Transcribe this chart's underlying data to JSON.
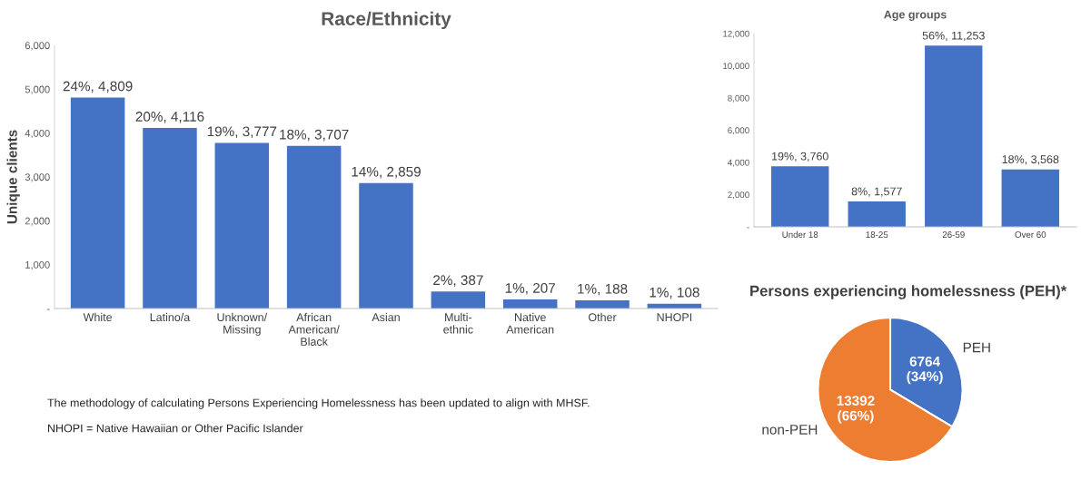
{
  "chart_data": [
    {
      "type": "bar",
      "title": "Race/Ethnicity",
      "ylabel": "Unique clients",
      "categories": [
        "White",
        "Latino/a",
        "Unknown/\nMissing",
        "African\nAmerican/\nBlack",
        "Asian",
        "Multi-\nethnic",
        "Native\nAmerican",
        "Other",
        "NHOPI"
      ],
      "values": [
        4809,
        4116,
        3777,
        3707,
        2859,
        387,
        207,
        188,
        108
      ],
      "value_labels": [
        "24%, 4,809",
        "20%, 4,116",
        "19%, 3,777",
        "18%, 3,707",
        "14%, 2,859",
        "2%, 387",
        "1%, 207",
        "1%, 188",
        "1%, 108"
      ],
      "color": "#4472c4",
      "ylim": [
        0,
        6000
      ],
      "yticks": [
        {
          "value": 0,
          "label": "-"
        },
        {
          "value": 1000,
          "label": "1,000"
        },
        {
          "value": 2000,
          "label": "2,000"
        },
        {
          "value": 3000,
          "label": "3,000"
        },
        {
          "value": 4000,
          "label": "4,000"
        },
        {
          "value": 5000,
          "label": "5,000"
        },
        {
          "value": 6000,
          "label": "6,000"
        }
      ],
      "grid": false,
      "legend": false,
      "annotations": [
        "The methodology of calculating Persons Experiencing Homelessness has been updated to align with MHSF.",
        "NHOPI = Native Hawaiian or Other Pacific Islander"
      ]
    },
    {
      "type": "bar",
      "title": "Age groups",
      "categories": [
        "Under 18",
        "18-25",
        "26-59",
        "Over 60"
      ],
      "values": [
        3760,
        1577,
        11253,
        3568
      ],
      "value_labels": [
        "19%, 3,760",
        "8%, 1,577",
        "56%, 11,253",
        "18%, 3,568"
      ],
      "color": "#4472c4",
      "ylim": [
        0,
        12000
      ],
      "yticks": [
        {
          "value": 0,
          "label": "-"
        },
        {
          "value": 2000,
          "label": "2,000"
        },
        {
          "value": 4000,
          "label": "4,000"
        },
        {
          "value": 6000,
          "label": "6,000"
        },
        {
          "value": 8000,
          "label": "8,000"
        },
        {
          "value": 10000,
          "label": "10,000"
        },
        {
          "value": 12000,
          "label": "12,000"
        }
      ],
      "grid": false,
      "legend": false
    },
    {
      "type": "pie",
      "title": "Persons experiencing homelessness (PEH)*",
      "categories": [
        "PEH",
        "non-PEH"
      ],
      "values": [
        6764,
        13392
      ],
      "value_labels": [
        "6764\n(34%)",
        "13392\n(66%)"
      ],
      "colors": [
        "#4472c4",
        "#ed7d31"
      ],
      "legend": false
    }
  ]
}
